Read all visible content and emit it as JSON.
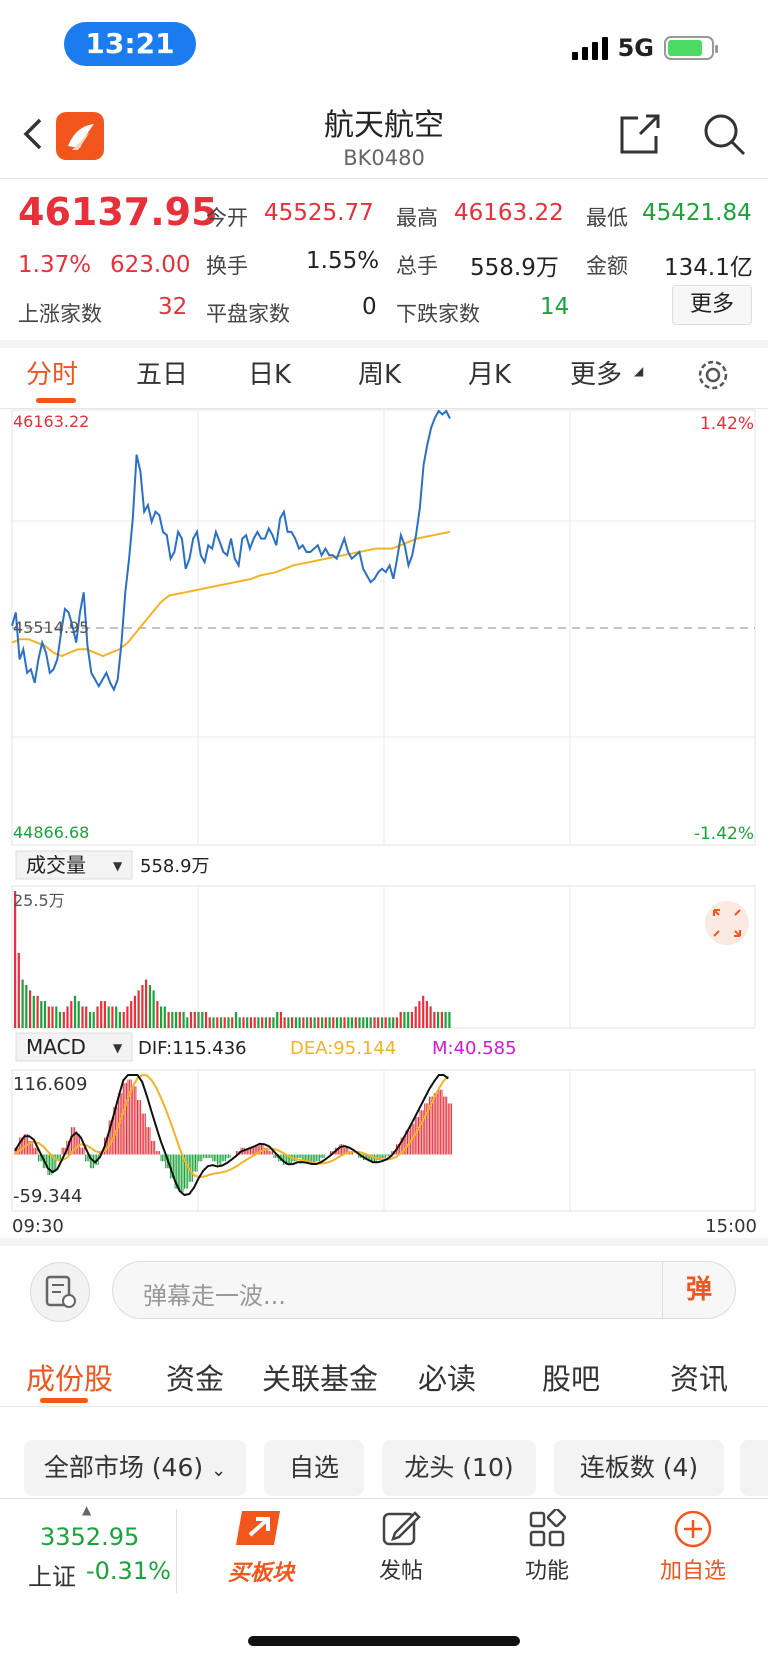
{
  "status_bar": {
    "time": "13:21",
    "network": "5G"
  },
  "header": {
    "title": "航天航空",
    "code": "BK0480"
  },
  "quote": {
    "price": "46137.95",
    "change_pct": "1.37%",
    "change_abs": "623.00",
    "open_label": "今开",
    "open": "45525.77",
    "high_label": "最高",
    "high": "46163.22",
    "low_label": "最低",
    "low": "45421.84",
    "turnover_label": "换手",
    "turnover": "1.55%",
    "volume_label": "总手",
    "volume": "558.9万",
    "amount_label": "金额",
    "amount": "134.1亿",
    "up_label": "上涨家数",
    "up": "32",
    "flat_label": "平盘家数",
    "flat": "0",
    "down_label": "下跌家数",
    "down": "14",
    "more": "更多"
  },
  "chart_tabs": [
    "分时",
    "五日",
    "日K",
    "周K",
    "月K",
    "更多"
  ],
  "chart_data": {
    "type": "line",
    "intraday": {
      "y_top_label": "46163.22",
      "y_mid_label": "45514.95",
      "y_bottom_label": "44866.68",
      "pct_top": "1.42%",
      "pct_bottom": "-1.42%",
      "ylim": [
        44866.68,
        46163.22
      ],
      "prev_close": 45514.95,
      "series": [
        {
          "values": [
            45520,
            45560,
            45420,
            45450,
            45380,
            45390,
            45350,
            45420,
            45470,
            45440,
            45380,
            45390,
            45420,
            45500,
            45570,
            45560,
            45520,
            45470,
            45560,
            45620,
            45460,
            45380,
            45360,
            45340,
            45360,
            45380,
            45350,
            45330,
            45360,
            45470,
            45620,
            45720,
            45840,
            46030,
            45980,
            45860,
            45880,
            45830,
            45860,
            45850,
            45800,
            45790,
            45720,
            45740,
            45800,
            45780,
            45690,
            45720,
            45780,
            45800,
            45730,
            45710,
            45760,
            45750,
            45800,
            45770,
            45740,
            45730,
            45780,
            45720,
            45700,
            45780,
            45790,
            45750,
            45780,
            45800,
            45780,
            45780,
            45810,
            45790,
            45760,
            45840,
            45860,
            45800,
            45800,
            45780,
            45750,
            45760,
            45740,
            45740,
            45750,
            45760,
            45730,
            45750,
            45730,
            45730,
            45720,
            45750,
            45780,
            45740,
            45720,
            45730,
            45740,
            45690,
            45670,
            45650,
            45660,
            45680,
            45690,
            45680,
            45700,
            45660,
            45720,
            45790,
            45760,
            45700,
            45730,
            45790,
            45870,
            46000,
            46060,
            46110,
            46140,
            46160,
            46150,
            46160,
            46137.95
          ]
        },
        {
          "values": [
            45470,
            45480,
            45480,
            45470,
            45460,
            45440,
            45430,
            45440,
            45450,
            45450,
            45440,
            45430,
            45440,
            45450,
            45470,
            45500,
            45530,
            45560,
            45590,
            45610,
            45615,
            45620,
            45625,
            45630,
            45635,
            45640,
            45645,
            45650,
            45655,
            45660,
            45670,
            45675,
            45680,
            45690,
            45700,
            45705,
            45710,
            45715,
            45720,
            45725,
            45730,
            45735,
            45740,
            45745,
            45750,
            45750,
            45750,
            45760,
            45770,
            45780,
            45785,
            45790,
            45795,
            45800
          ]
        }
      ]
    },
    "volume": {
      "label": "成交量",
      "total": "558.9万",
      "max_label": "25.5万",
      "values": [
        25.5,
        14,
        9,
        8,
        7,
        6,
        6,
        5,
        5,
        4,
        4,
        4,
        3,
        3,
        4,
        5,
        6,
        5,
        4,
        4,
        3,
        3,
        4,
        5,
        5,
        4,
        4,
        4,
        3,
        3,
        4,
        5,
        6,
        7,
        8,
        9,
        8,
        7,
        5,
        4,
        4,
        3,
        3,
        3,
        3,
        3,
        2,
        3,
        3,
        3,
        3,
        3,
        2,
        2,
        2,
        2,
        2,
        2,
        2,
        3,
        2,
        2,
        2,
        2,
        2,
        2,
        2,
        2,
        2,
        2,
        3,
        3,
        2,
        2,
        2,
        2,
        2,
        2,
        2,
        2,
        2,
        2,
        2,
        2,
        2,
        2,
        2,
        2,
        2,
        2,
        2,
        2,
        2,
        2,
        2,
        2,
        2,
        2,
        2,
        2,
        2,
        2,
        2,
        3,
        3,
        3,
        3,
        4,
        5,
        6,
        5,
        4,
        3,
        3,
        3,
        3,
        3
      ],
      "up": [
        1,
        1,
        0,
        0,
        1,
        0,
        1,
        0,
        0,
        1,
        1,
        0,
        0,
        1,
        1,
        1,
        0,
        0,
        1,
        1,
        0,
        0,
        1,
        1,
        1,
        0,
        1,
        0,
        0,
        1,
        1,
        1,
        1,
        1,
        1,
        1,
        0,
        0,
        1,
        0,
        0,
        1,
        0,
        0,
        1,
        0,
        0,
        1,
        1,
        0,
        0,
        1,
        1,
        0,
        1,
        0,
        1,
        0,
        1,
        0,
        0,
        1,
        0,
        1,
        1,
        0,
        1,
        0,
        1,
        0,
        0,
        1,
        1,
        0,
        1,
        0,
        0,
        1,
        0,
        1,
        0,
        1,
        0,
        1,
        0,
        1,
        0,
        0,
        1,
        0,
        0,
        1,
        0,
        0,
        0,
        0,
        1,
        1,
        0,
        1,
        0,
        0,
        1,
        1,
        0,
        0,
        1,
        1,
        1,
        1,
        1,
        1,
        1,
        0,
        1,
        0,
        0
      ]
    },
    "macd": {
      "label": "MACD",
      "dif_label": "DIF:115.436",
      "dea_label": "DEA:95.144",
      "m_label": "M:40.585",
      "max_label": "116.609",
      "min_label": "-59.344",
      "ylim": [
        -59.344,
        116.609
      ],
      "hist": [
        10,
        25,
        30,
        20,
        10,
        -10,
        -20,
        -30,
        -25,
        -10,
        10,
        20,
        40,
        30,
        10,
        -10,
        -20,
        -15,
        5,
        25,
        50,
        70,
        90,
        105,
        110,
        100,
        80,
        60,
        40,
        20,
        5,
        -10,
        -20,
        -35,
        -50,
        -55,
        -50,
        -40,
        -25,
        -10,
        -5,
        -5,
        -10,
        -15,
        -10,
        -5,
        0,
        5,
        10,
        8,
        10,
        12,
        15,
        10,
        5,
        -5,
        -10,
        -15,
        -15,
        -10,
        -5,
        -8,
        -10,
        -12,
        -10,
        -5,
        0,
        5,
        10,
        15,
        10,
        5,
        0,
        -5,
        -8,
        -10,
        -12,
        -8,
        -5,
        -2,
        5,
        15,
        25,
        35,
        45,
        55,
        65,
        75,
        85,
        90,
        95,
        85,
        75
      ]
    },
    "x_labels": [
      "09:30",
      "15:00"
    ]
  },
  "comment": {
    "placeholder": "弹幕走一波...",
    "send_label": "弹"
  },
  "bottom_tabs": [
    "成份股",
    "资金",
    "关联基金",
    "必读",
    "股吧",
    "资讯"
  ],
  "filters": [
    "全部市场 (46)",
    "自选",
    "龙头 (10)",
    "连板数 (4)"
  ],
  "nav": {
    "index_value": "3352.95",
    "index_name": "上证",
    "index_change": "-0.31%",
    "items": [
      "买板块",
      "发帖",
      "功能",
      "加自选"
    ]
  },
  "colors": {
    "up": "#e8303a",
    "down": "#1aa33a",
    "accent": "#f2561d",
    "price_line": "#2a6fc9",
    "avg_line": "#f5b324"
  }
}
